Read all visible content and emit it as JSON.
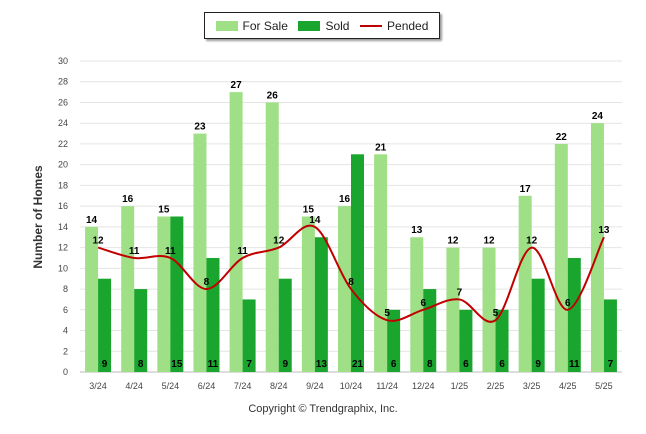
{
  "chart_data": {
    "type": "bar",
    "categories": [
      "3/24",
      "4/24",
      "5/24",
      "6/24",
      "7/24",
      "8/24",
      "9/24",
      "10/24",
      "11/24",
      "12/24",
      "1/25",
      "2/25",
      "3/25",
      "4/25",
      "5/25"
    ],
    "series": [
      {
        "name": "For Sale",
        "kind": "bar",
        "color": "#9fe087",
        "values": [
          14,
          16,
          15,
          23,
          27,
          26,
          15,
          16,
          21,
          13,
          12,
          12,
          17,
          22,
          24
        ]
      },
      {
        "name": "Sold",
        "kind": "bar",
        "color": "#1aa62e",
        "values": [
          9,
          8,
          15,
          11,
          7,
          9,
          13,
          21,
          6,
          8,
          6,
          6,
          9,
          11,
          7
        ]
      },
      {
        "name": "Pended",
        "kind": "line",
        "color": "#c00000",
        "values": [
          12,
          11,
          11,
          8,
          11,
          12,
          14,
          8,
          5,
          6,
          7,
          5,
          12,
          6,
          13
        ]
      }
    ],
    "ylabel": "Number of Homes",
    "ylim": [
      0,
      30
    ],
    "yticks": [
      0,
      2,
      4,
      6,
      8,
      10,
      12,
      14,
      16,
      18,
      20,
      22,
      24,
      26,
      28,
      30
    ],
    "grid": true,
    "legend_position": "top-center"
  },
  "footer": {
    "copyright": "Copyright © Trendgraphix, Inc."
  }
}
